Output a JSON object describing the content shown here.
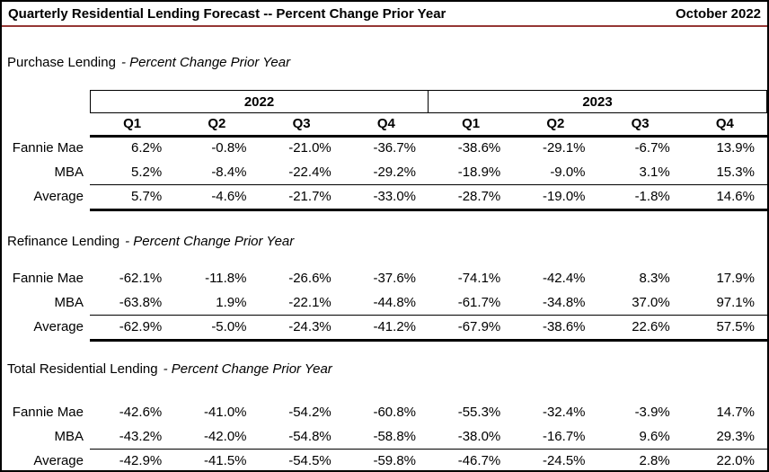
{
  "header": {
    "title": "Quarterly Residential Lending Forecast -- Percent Change Prior Year",
    "date": "October 2022"
  },
  "colors": {
    "title_rule": "#953735",
    "border": "#000000",
    "background": "#ffffff",
    "text": "#000000"
  },
  "columns": {
    "years": [
      "2022",
      "2023"
    ],
    "quarters": [
      "Q1",
      "Q2",
      "Q3",
      "Q4",
      "Q1",
      "Q2",
      "Q3",
      "Q4"
    ]
  },
  "sections": [
    {
      "name": "Purchase Lending",
      "subtitle": "- Percent Change Prior Year",
      "rows": [
        {
          "label": "Fannie Mae",
          "values": [
            "6.2%",
            "-0.8%",
            "-21.0%",
            "-36.7%",
            "-38.6%",
            "-29.1%",
            "-6.7%",
            "13.9%"
          ]
        },
        {
          "label": "MBA",
          "values": [
            "5.2%",
            "-8.4%",
            "-22.4%",
            "-29.2%",
            "-18.9%",
            "-9.0%",
            "3.1%",
            "15.3%"
          ]
        },
        {
          "label": "Average",
          "values": [
            "5.7%",
            "-4.6%",
            "-21.7%",
            "-33.0%",
            "-28.7%",
            "-19.0%",
            "-1.8%",
            "14.6%"
          ]
        }
      ]
    },
    {
      "name": "Refinance Lending",
      "subtitle": "- Percent Change Prior Year",
      "rows": [
        {
          "label": "Fannie Mae",
          "values": [
            "-62.1%",
            "-11.8%",
            "-26.6%",
            "-37.6%",
            "-74.1%",
            "-42.4%",
            "8.3%",
            "17.9%"
          ]
        },
        {
          "label": "MBA",
          "values": [
            "-63.8%",
            "1.9%",
            "-22.1%",
            "-44.8%",
            "-61.7%",
            "-34.8%",
            "37.0%",
            "97.1%"
          ]
        },
        {
          "label": "Average",
          "values": [
            "-62.9%",
            "-5.0%",
            "-24.3%",
            "-41.2%",
            "-67.9%",
            "-38.6%",
            "22.6%",
            "57.5%"
          ]
        }
      ]
    },
    {
      "name": "Total Residential Lending",
      "subtitle": "- Percent Change Prior Year",
      "rows": [
        {
          "label": "Fannie Mae",
          "values": [
            "-42.6%",
            "-41.0%",
            "-54.2%",
            "-60.8%",
            "-55.3%",
            "-32.4%",
            "-3.9%",
            "14.7%"
          ]
        },
        {
          "label": "MBA",
          "values": [
            "-43.2%",
            "-42.0%",
            "-54.8%",
            "-58.8%",
            "-38.0%",
            "-16.7%",
            "9.6%",
            "29.3%"
          ]
        },
        {
          "label": "Average",
          "values": [
            "-42.9%",
            "-41.5%",
            "-54.5%",
            "-59.8%",
            "-46.7%",
            "-24.5%",
            "2.8%",
            "22.0%"
          ]
        }
      ]
    }
  ]
}
